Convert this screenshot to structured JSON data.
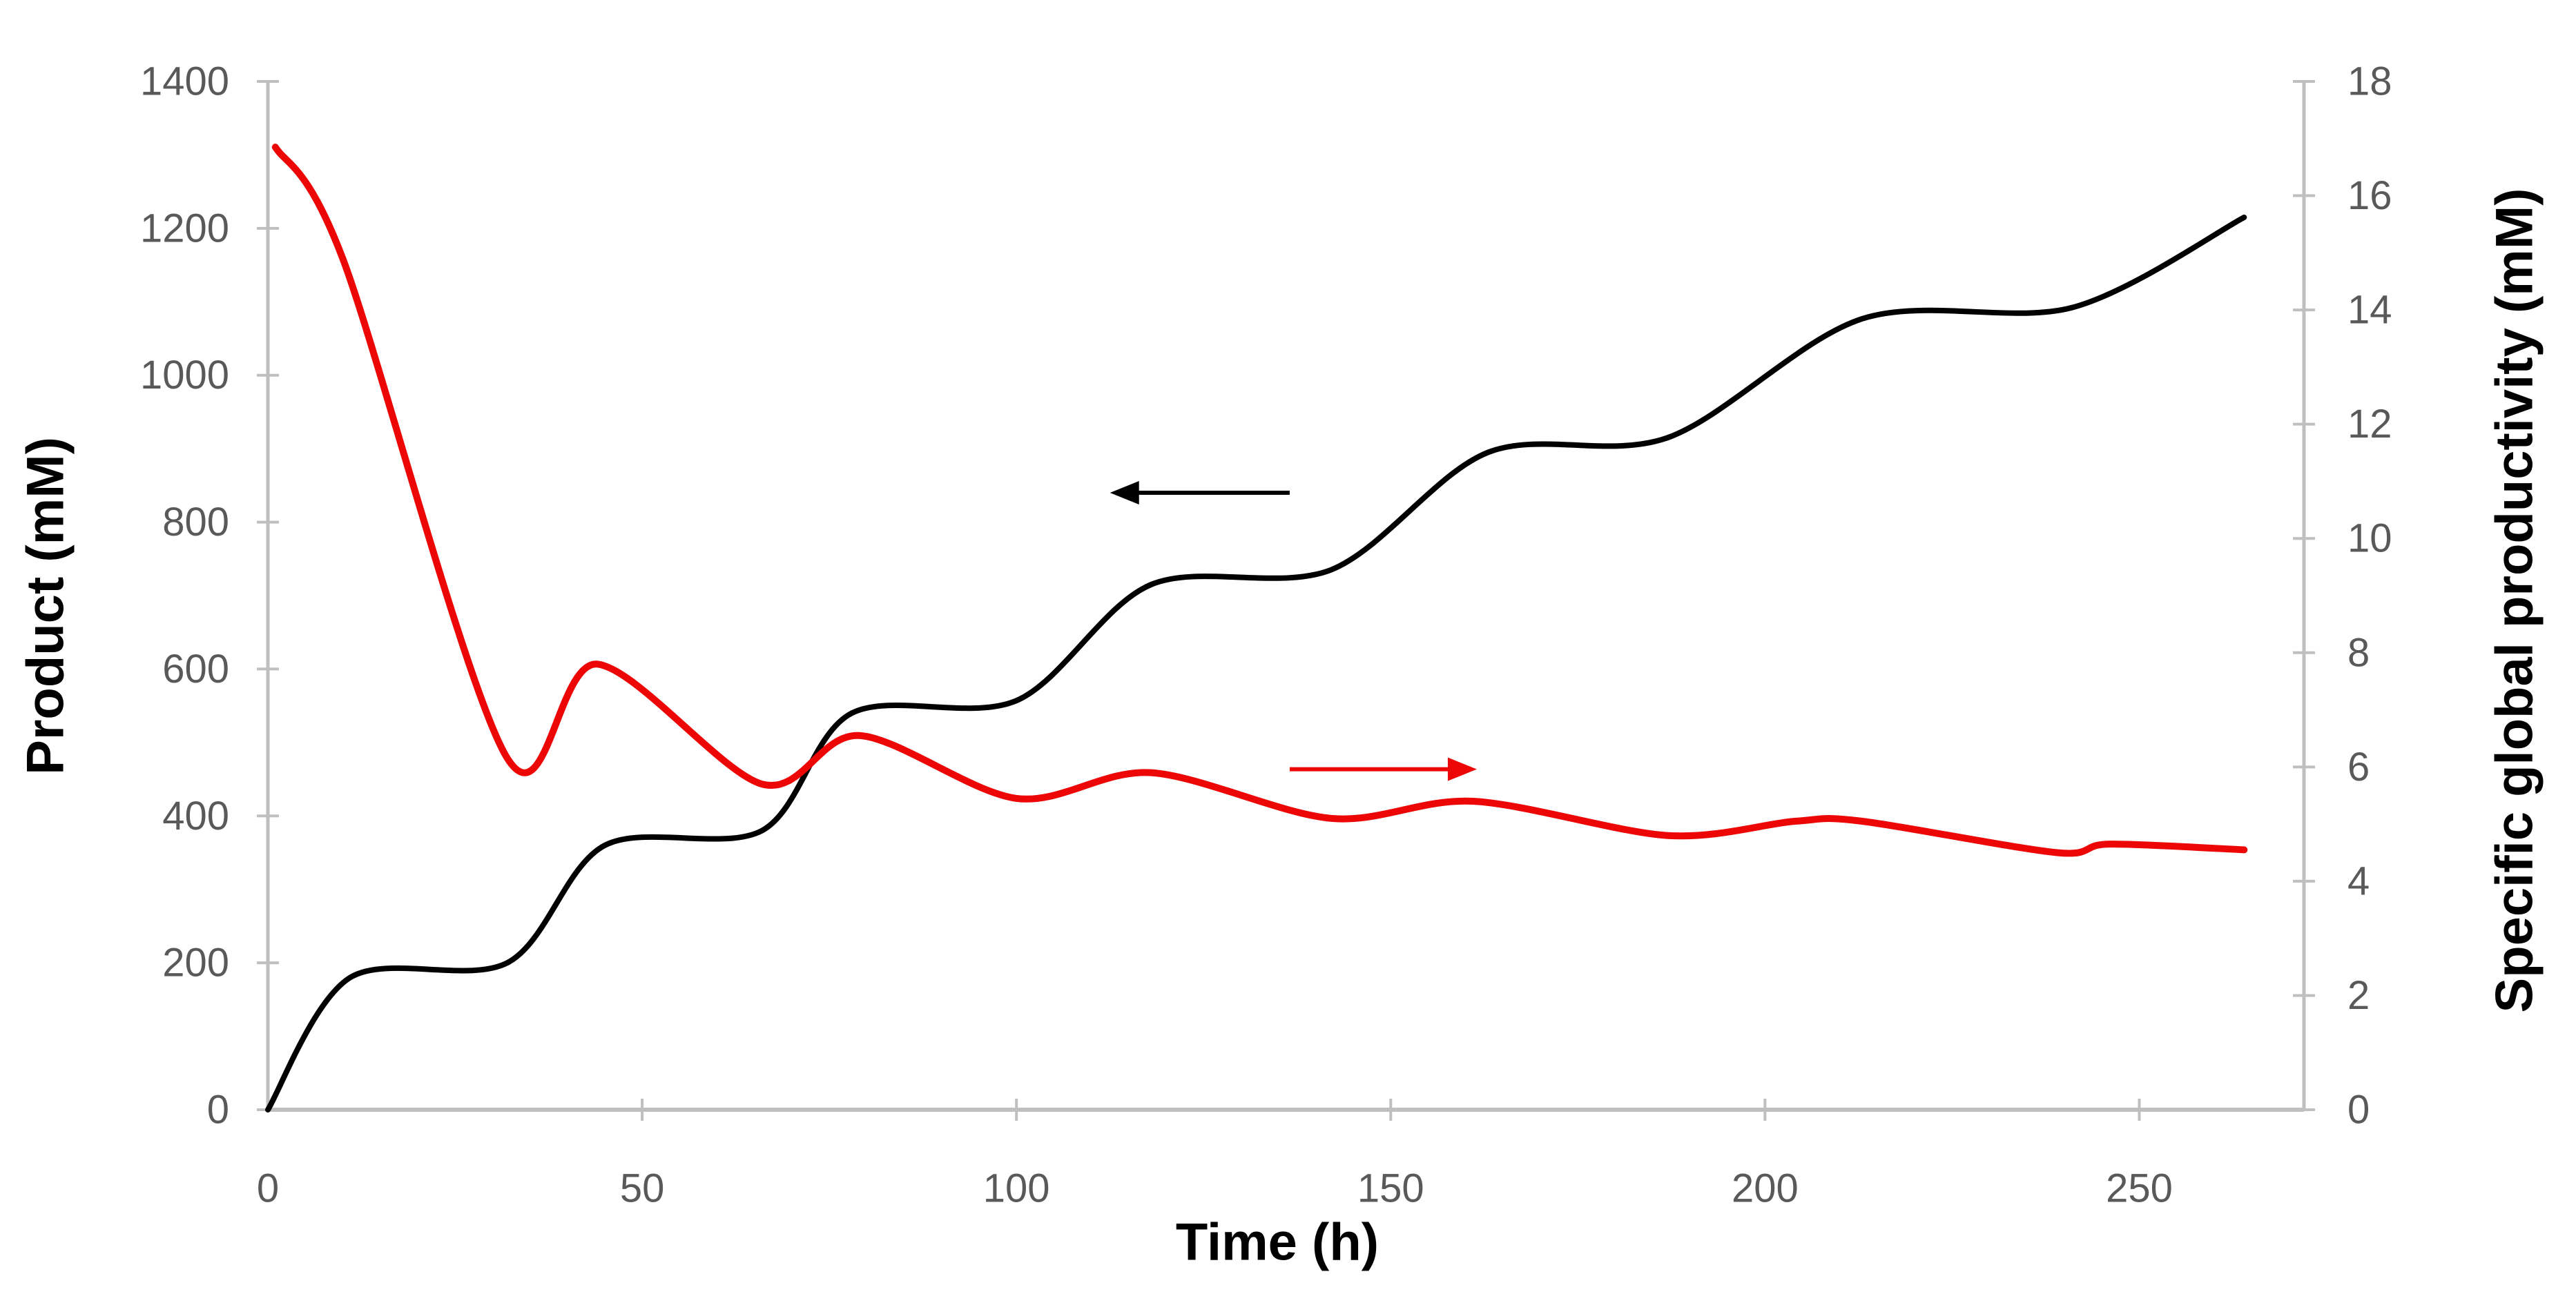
{
  "chart_data": {
    "type": "line",
    "title": "",
    "xlabel": "Time (h)",
    "ylabel_left": "Product (mM)",
    "ylabel_right": "Specific global productivity (mM)",
    "grid": false,
    "legend": "none",
    "x_range": [
      0,
      272
    ],
    "x_ticks": [
      0,
      50,
      100,
      150,
      200,
      250
    ],
    "y_left_range": [
      0,
      1400
    ],
    "y_left_ticks": [
      0,
      200,
      400,
      600,
      800,
      1000,
      1200,
      1400
    ],
    "y_right_range": [
      0,
      18
    ],
    "y_right_ticks": [
      0,
      2,
      4,
      6,
      8,
      10,
      12,
      14,
      16,
      18
    ],
    "series": [
      {
        "name": "Product",
        "axis": "left",
        "color": "#000000",
        "stroke_width": 8,
        "smooth": true,
        "x": [
          0,
          11,
          32,
          45,
          66,
          78,
          100,
          118,
          142,
          163,
          187,
          213,
          241,
          264
        ],
        "y": [
          0,
          180,
          200,
          360,
          380,
          540,
          557,
          715,
          735,
          895,
          915,
          1077,
          1092,
          1215
        ]
      },
      {
        "name": "Specific global productivity",
        "axis": "right",
        "color": "#ec0606",
        "stroke_width": 10,
        "smooth": true,
        "x": [
          1,
          10,
          32,
          44,
          66,
          79,
          100,
          118,
          142,
          161,
          187,
          204,
          213,
          239,
          246,
          264
        ],
        "y": [
          16.85,
          14.9,
          6.15,
          7.8,
          5.7,
          6.55,
          5.45,
          5.9,
          5.1,
          5.4,
          4.8,
          5.05,
          5.05,
          4.5,
          4.65,
          4.55
        ]
      }
    ],
    "annotations": [
      {
        "name": "black-left-arrow",
        "type": "arrow",
        "axis": "left",
        "color": "#000000",
        "x_tail": 136.5,
        "x_head": 112.5,
        "y": 840,
        "direction": "left"
      },
      {
        "name": "red-right-arrow",
        "type": "arrow",
        "axis": "right",
        "color": "#ec0606",
        "x_tail": 136.5,
        "x_head": 161.5,
        "y": 5.96,
        "direction": "right"
      }
    ],
    "axis_colors": {
      "axis_line": "#bfbfbf",
      "tick_mark": "#bfbfbf",
      "tick_text": "#595959",
      "title_text": "#000000"
    }
  }
}
